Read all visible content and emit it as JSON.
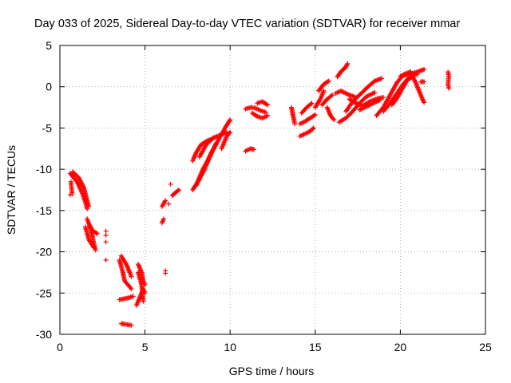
{
  "chart_data": {
    "type": "scatter",
    "title": "Day 033 of 2025, Sidereal Day-to-day VTEC variation (SDTVAR) for receiver mmar",
    "xlabel": "GPS time / hours",
    "ylabel": "SDTVAR / TECUs",
    "xlim": [
      0,
      25
    ],
    "ylim": [
      -30,
      5
    ],
    "xticks": [
      "0",
      "5",
      "10",
      "15",
      "20",
      "25"
    ],
    "yticks": [
      "5",
      "0",
      "-5",
      "-10",
      "-15",
      "-20",
      "-25",
      "-30"
    ],
    "grid": true,
    "legend": "none",
    "marker": "plus",
    "color": "#ff0000",
    "arcs": [
      [
        [
          0.6,
          -10.5
        ],
        [
          1.0,
          -11.5
        ],
        [
          1.3,
          -12.8
        ],
        [
          1.5,
          -14.0
        ],
        [
          1.6,
          -14.8
        ]
      ],
      [
        [
          0.75,
          -10.3
        ],
        [
          1.1,
          -11.0
        ],
        [
          1.4,
          -12.2
        ],
        [
          1.6,
          -13.8
        ],
        [
          1.7,
          -14.5
        ]
      ],
      [
        [
          0.65,
          -11.5
        ],
        [
          0.7,
          -12.5
        ],
        [
          0.72,
          -13.0
        ]
      ],
      [
        [
          1.6,
          -16.0
        ],
        [
          1.8,
          -17.2
        ],
        [
          1.9,
          -18.0
        ],
        [
          2.0,
          -19.0
        ],
        [
          2.1,
          -19.8
        ]
      ],
      [
        [
          1.75,
          -16.8
        ],
        [
          1.95,
          -17.5
        ],
        [
          2.2,
          -17.8
        ]
      ],
      [
        [
          1.5,
          -17.0
        ],
        [
          1.7,
          -18.5
        ],
        [
          2.0,
          -19.5
        ]
      ],
      [
        [
          3.5,
          -21.0
        ],
        [
          3.7,
          -22.5
        ],
        [
          3.8,
          -23.5
        ],
        [
          4.0,
          -24.0
        ],
        [
          4.2,
          -24.5
        ]
      ],
      [
        [
          3.6,
          -20.5
        ],
        [
          3.9,
          -21.5
        ],
        [
          4.1,
          -22.5
        ],
        [
          4.2,
          -23.0
        ]
      ],
      [
        [
          3.5,
          -25.8
        ],
        [
          4.0,
          -25.6
        ],
        [
          4.3,
          -25.4
        ]
      ],
      [
        [
          3.6,
          -28.7
        ],
        [
          3.9,
          -28.8
        ],
        [
          4.2,
          -28.9
        ]
      ],
      [
        [
          4.6,
          -21.5
        ],
        [
          4.8,
          -22.5
        ],
        [
          4.9,
          -23.5
        ],
        [
          5.0,
          -24.0
        ]
      ],
      [
        [
          4.5,
          -26.5
        ],
        [
          4.7,
          -25.5
        ],
        [
          4.9,
          -24.5
        ],
        [
          5.0,
          -25.0
        ]
      ],
      [
        [
          4.6,
          -22.5
        ],
        [
          4.8,
          -24.0
        ],
        [
          4.9,
          -26.0
        ]
      ],
      [
        [
          6.0,
          -14.5
        ],
        [
          6.2,
          -13.8
        ]
      ],
      [
        [
          6.0,
          -16.5
        ],
        [
          6.1,
          -16.0
        ]
      ],
      [
        [
          6.6,
          -13.2
        ],
        [
          6.8,
          -12.8
        ],
        [
          7.0,
          -12.5
        ]
      ],
      [
        [
          7.8,
          -12.5
        ],
        [
          8.2,
          -11.2
        ],
        [
          8.5,
          -10.0
        ],
        [
          8.9,
          -8.0
        ],
        [
          9.3,
          -6.5
        ],
        [
          9.7,
          -5.0
        ],
        [
          10.0,
          -4.0
        ]
      ],
      [
        [
          8.0,
          -12.0
        ],
        [
          8.4,
          -10.0
        ],
        [
          8.8,
          -8.5
        ],
        [
          9.2,
          -6.8
        ]
      ],
      [
        [
          7.8,
          -9.0
        ],
        [
          8.0,
          -8.0
        ],
        [
          8.3,
          -7.0
        ],
        [
          8.7,
          -6.5
        ],
        [
          9.0,
          -6.3
        ]
      ],
      [
        [
          8.2,
          -8.5
        ],
        [
          8.6,
          -7.0
        ],
        [
          9.0,
          -6.2
        ],
        [
          9.5,
          -5.8
        ],
        [
          9.8,
          -5.5
        ]
      ],
      [
        [
          9.5,
          -7.5
        ],
        [
          9.8,
          -6.0
        ],
        [
          10.0,
          -5.5
        ]
      ],
      [
        [
          10.9,
          -7.8
        ],
        [
          11.2,
          -7.5
        ],
        [
          11.4,
          -7.6
        ]
      ],
      [
        [
          10.9,
          -2.7
        ],
        [
          11.2,
          -2.5
        ],
        [
          11.5,
          -2.6
        ],
        [
          11.8,
          -2.9
        ],
        [
          12.1,
          -3.1
        ]
      ],
      [
        [
          11.3,
          -3.2
        ],
        [
          11.6,
          -3.6
        ],
        [
          11.9,
          -3.8
        ],
        [
          12.2,
          -3.5
        ]
      ],
      [
        [
          11.6,
          -2.0
        ],
        [
          11.9,
          -1.8
        ],
        [
          12.2,
          -2.2
        ]
      ],
      [
        [
          13.6,
          -2.5
        ],
        [
          13.7,
          -3.5
        ],
        [
          13.8,
          -4.5
        ]
      ],
      [
        [
          14.1,
          -4.5
        ],
        [
          14.4,
          -4.2
        ],
        [
          14.7,
          -3.8
        ],
        [
          15.0,
          -3.4
        ]
      ],
      [
        [
          14.1,
          -6.0
        ],
        [
          14.4,
          -5.7
        ],
        [
          14.7,
          -5.4
        ],
        [
          14.9,
          -5.0
        ]
      ],
      [
        [
          14.2,
          -3.2
        ],
        [
          14.5,
          -2.5
        ],
        [
          14.8,
          -2.0
        ]
      ],
      [
        [
          15.0,
          -2.5
        ],
        [
          15.3,
          -1.5
        ],
        [
          15.5,
          -0.5
        ]
      ],
      [
        [
          15.4,
          -2.2
        ],
        [
          15.7,
          -1.5
        ],
        [
          16.0,
          -1.0
        ]
      ],
      [
        [
          15.7,
          -2.5
        ],
        [
          15.9,
          -3.5
        ],
        [
          16.1,
          -4.0
        ]
      ],
      [
        [
          15.2,
          -0.5
        ],
        [
          15.5,
          0.3
        ],
        [
          15.8,
          0.7
        ]
      ],
      [
        [
          16.3,
          1.2
        ],
        [
          16.5,
          1.8
        ],
        [
          16.8,
          2.4
        ],
        [
          16.9,
          2.8
        ]
      ],
      [
        [
          16.2,
          -0.8
        ],
        [
          16.5,
          -0.5
        ],
        [
          16.9,
          -0.9
        ],
        [
          17.4,
          -1.3
        ]
      ],
      [
        [
          16.4,
          -4.3
        ],
        [
          16.8,
          -3.8
        ],
        [
          17.2,
          -3.0
        ],
        [
          17.6,
          -2.0
        ],
        [
          18.0,
          -1.2
        ],
        [
          18.5,
          -0.7
        ]
      ],
      [
        [
          16.8,
          -3.0
        ],
        [
          17.2,
          -1.8
        ],
        [
          17.7,
          -0.8
        ],
        [
          18.1,
          0.0
        ],
        [
          18.5,
          0.7
        ],
        [
          18.9,
          1.0
        ]
      ],
      [
        [
          17.0,
          -1.5
        ],
        [
          17.4,
          -2.0
        ],
        [
          17.8,
          -2.3
        ],
        [
          18.2,
          -1.8
        ],
        [
          18.7,
          -1.4
        ],
        [
          19.0,
          -1.3
        ]
      ],
      [
        [
          17.6,
          -2.8
        ],
        [
          18.0,
          -2.4
        ],
        [
          18.4,
          -2.0
        ],
        [
          18.8,
          -1.6
        ]
      ],
      [
        [
          18.6,
          -3.5
        ],
        [
          19.0,
          -2.5
        ],
        [
          19.4,
          -1.0
        ],
        [
          19.8,
          0.5
        ],
        [
          20.2,
          1.5
        ],
        [
          20.6,
          1.8
        ]
      ],
      [
        [
          19.0,
          -3.0
        ],
        [
          19.4,
          -2.0
        ],
        [
          19.8,
          -0.8
        ],
        [
          20.2,
          0.4
        ],
        [
          20.6,
          1.3
        ],
        [
          21.0,
          1.5
        ]
      ],
      [
        [
          19.5,
          -2.2
        ],
        [
          19.8,
          -1.4
        ],
        [
          20.1,
          -0.3
        ],
        [
          20.4,
          0.8
        ],
        [
          20.7,
          1.2
        ]
      ],
      [
        [
          20.0,
          1.3
        ],
        [
          20.5,
          1.5
        ],
        [
          21.0,
          1.8
        ],
        [
          21.4,
          2.1
        ]
      ],
      [
        [
          20.6,
          1.8
        ],
        [
          20.9,
          0.5
        ],
        [
          21.1,
          -0.5
        ],
        [
          21.3,
          -1.5
        ],
        [
          21.4,
          -1.9
        ]
      ],
      [
        [
          21.2,
          0.6
        ],
        [
          21.4,
          0.6
        ]
      ],
      [
        [
          22.8,
          1.8
        ],
        [
          22.85,
          1.3
        ],
        [
          22.8,
          0.3
        ],
        [
          22.85,
          -0.2
        ]
      ]
    ],
    "points": [
      [
        0.6,
        -13.1
      ],
      [
        2.7,
        -17.5
      ],
      [
        2.7,
        -18.0
      ],
      [
        2.7,
        -18.8
      ],
      [
        2.7,
        -21.0
      ],
      [
        6.4,
        -14.2
      ],
      [
        6.5,
        -11.8
      ],
      [
        6.2,
        -22.3
      ],
      [
        6.2,
        -22.6
      ]
    ]
  }
}
